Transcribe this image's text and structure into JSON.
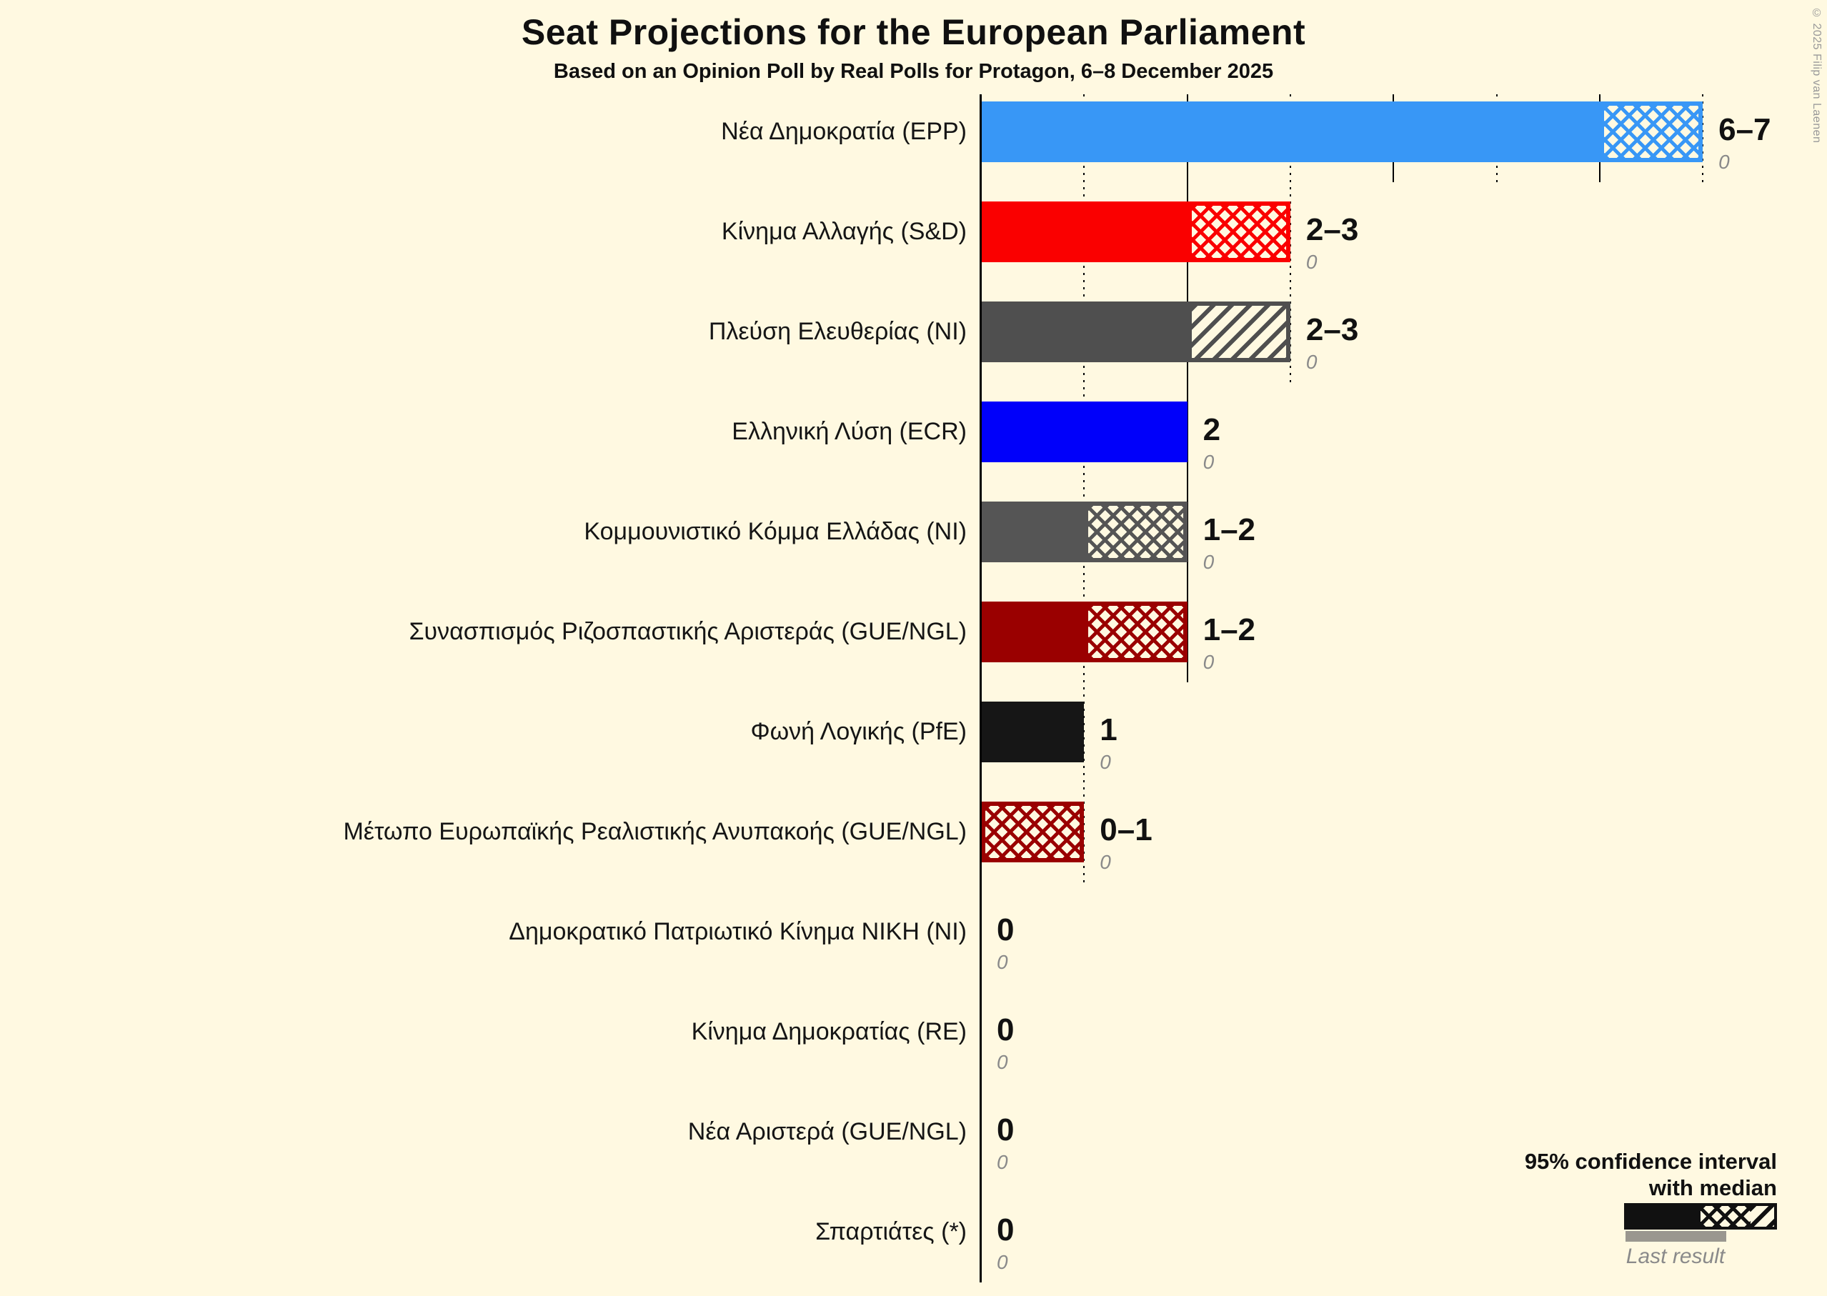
{
  "title": "Seat Projections for the European Parliament",
  "subtitle": "Based on an Opinion Poll by Real Polls for Protagon, 6–8 December 2025",
  "copyright": "© 2025 Filip van Laenen",
  "legend": {
    "ci_line1": "95% confidence interval",
    "ci_line2": "with median",
    "last_result": "Last result"
  },
  "colors": {
    "background": "#FFF9E1",
    "grid": "#000000",
    "value_text": "#111111",
    "last_result_text": "#8A8A8A",
    "legend_black": "#111111",
    "legend_gray_bar": "#9A978F"
  },
  "chart_data": {
    "type": "bar",
    "title": "Seat Projections for the European Parliament",
    "subtitle": "Based on an Opinion Poll by Real Polls for Protagon, 6–8 December 2025",
    "xlabel": "",
    "ylabel": "",
    "axis": {
      "min": 0,
      "max": 7.3,
      "solid_gridlines": [
        0,
        2,
        4,
        6
      ],
      "dotted_gridlines": [
        1,
        3,
        5,
        7
      ],
      "numeric_labels_shown": false
    },
    "legend_note": "95% confidence interval with median; gray bar = last result",
    "parties": [
      {
        "label": "Νέα Δημοκρατία (EPP)",
        "color": "#3897F6",
        "solid_to": 6,
        "hatch_type": "cross",
        "hatch_from": 6,
        "hatch_to": 7,
        "ci_low": 6,
        "ci_high": 7,
        "value_label": "6–7",
        "last_result": "0"
      },
      {
        "label": "Κίνημα Αλλαγής (S&D)",
        "color": "#FA0000",
        "solid_to": 2,
        "hatch_type": "cross",
        "hatch_from": 2,
        "hatch_to": 3,
        "ci_low": 2,
        "ci_high": 3,
        "value_label": "2–3",
        "last_result": "0"
      },
      {
        "label": "Πλεύση Ελευθερίας (NI)",
        "color": "#4F4F4F",
        "solid_to": 2,
        "hatch_type": "diag",
        "hatch_from": 2,
        "hatch_to": 3,
        "ci_low": 2,
        "ci_high": 3,
        "value_label": "2–3",
        "last_result": "0"
      },
      {
        "label": "Ελληνική Λύση (ECR)",
        "color": "#0000FA",
        "solid_to": 2,
        "hatch_type": null,
        "hatch_from": null,
        "hatch_to": null,
        "ci_low": 2,
        "ci_high": 2,
        "value_label": "2",
        "last_result": "0"
      },
      {
        "label": "Κομμουνιστικό Κόμμα Ελλάδας (NI)",
        "color": "#555555",
        "solid_to": 1,
        "hatch_type": "cross",
        "hatch_from": 1,
        "hatch_to": 2,
        "ci_low": 1,
        "ci_high": 2,
        "value_label": "1–2",
        "last_result": "0"
      },
      {
        "label": "Συνασπισμός Ριζοσπαστικής Αριστεράς (GUE/NGL)",
        "color": "#9A0000",
        "solid_to": 1,
        "hatch_type": "cross",
        "hatch_from": 1,
        "hatch_to": 2,
        "ci_low": 1,
        "ci_high": 2,
        "value_label": "1–2",
        "last_result": "0"
      },
      {
        "label": "Φωνή Λογικής (PfE)",
        "color": "#161616",
        "solid_to": 1,
        "hatch_type": null,
        "hatch_from": null,
        "hatch_to": null,
        "ci_low": 1,
        "ci_high": 1,
        "value_label": "1",
        "last_result": "0"
      },
      {
        "label": "Μέτωπο Ευρωπαϊκής Ρεαλιστικής Ανυπακοής (GUE/NGL)",
        "color": "#9A0000",
        "solid_to": 0,
        "hatch_type": "cross",
        "hatch_from": 0,
        "hatch_to": 1,
        "ci_low": 0,
        "ci_high": 1,
        "value_label": "0–1",
        "last_result": "0"
      },
      {
        "label": "Δημοκρατικό Πατριωτικό Κίνημα ΝΙΚΗ (NI)",
        "color": null,
        "solid_to": 0,
        "hatch_type": null,
        "hatch_from": null,
        "hatch_to": null,
        "ci_low": 0,
        "ci_high": 0,
        "value_label": "0",
        "last_result": "0"
      },
      {
        "label": "Κίνημα Δημοκρατίας (RE)",
        "color": null,
        "solid_to": 0,
        "hatch_type": null,
        "hatch_from": null,
        "hatch_to": null,
        "ci_low": 0,
        "ci_high": 0,
        "value_label": "0",
        "last_result": "0"
      },
      {
        "label": "Νέα Αριστερά (GUE/NGL)",
        "color": null,
        "solid_to": 0,
        "hatch_type": null,
        "hatch_from": null,
        "hatch_to": null,
        "ci_low": 0,
        "ci_high": 0,
        "value_label": "0",
        "last_result": "0"
      },
      {
        "label": "Σπαρτιάτες (*)",
        "color": null,
        "solid_to": 0,
        "hatch_type": null,
        "hatch_from": null,
        "hatch_to": null,
        "ci_low": 0,
        "ci_high": 0,
        "value_label": "0",
        "last_result": "0"
      }
    ],
    "legend_sample": {
      "solid_frac": 0.5,
      "cross_frac": 0.34,
      "diag_frac": 0.16
    }
  }
}
